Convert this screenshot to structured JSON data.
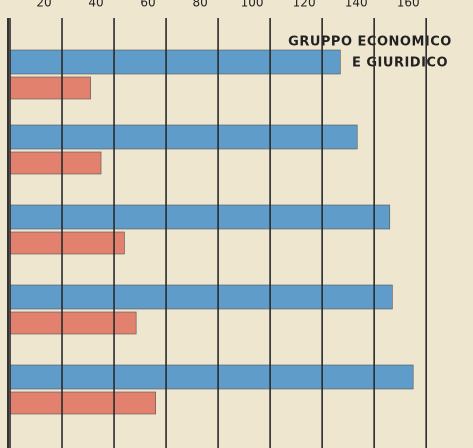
{
  "chart_data": {
    "type": "bar",
    "orientation": "horizontal",
    "title": [
      "GRUPPO ECONOMICO",
      "E GIURIDICO"
    ],
    "categories": [
      null,
      null,
      null,
      null,
      null
    ],
    "series": [
      {
        "color": "#5f9cc9",
        "values": [
          127,
          133.5,
          146,
          147,
          155
        ]
      },
      {
        "color": "#e3816f",
        "values": [
          31,
          35,
          44,
          48.5,
          56
        ]
      }
    ],
    "xlim": [
      0,
      178
    ],
    "xticks": [
      0,
      20,
      40,
      60,
      80,
      100,
      120,
      140,
      160
    ],
    "grid": true
  }
}
